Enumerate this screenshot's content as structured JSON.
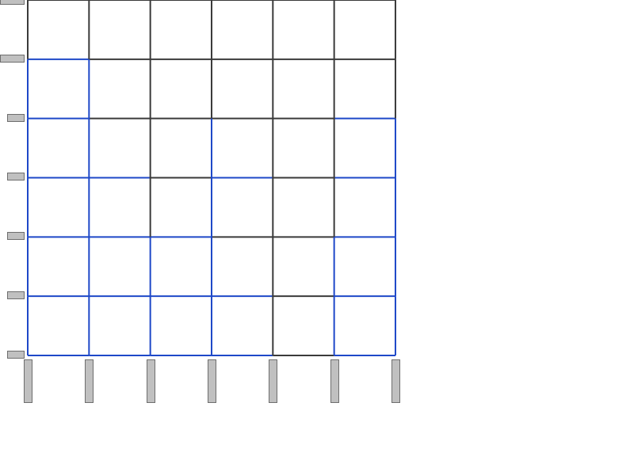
{
  "board": {
    "columns": 6,
    "rows": 6,
    "line_color": "#3a3a3a",
    "claimed_color": "#1e48c8",
    "handle_color": "#c0c0c0",
    "handle_border_color": "#6e6e6e",
    "claimed_horizontal_edges": [
      {
        "row": 1,
        "col": 0
      },
      {
        "row": 2,
        "col": 0
      },
      {
        "row": 2,
        "col": 5
      },
      {
        "row": 3,
        "col": 0
      },
      {
        "row": 3,
        "col": 1
      },
      {
        "row": 3,
        "col": 3
      },
      {
        "row": 3,
        "col": 5
      },
      {
        "row": 4,
        "col": 0
      },
      {
        "row": 4,
        "col": 1
      },
      {
        "row": 4,
        "col": 2
      },
      {
        "row": 4,
        "col": 5
      },
      {
        "row": 5,
        "col": 0
      },
      {
        "row": 5,
        "col": 1
      },
      {
        "row": 5,
        "col": 2
      },
      {
        "row": 5,
        "col": 3
      },
      {
        "row": 5,
        "col": 5
      },
      {
        "row": 6,
        "col": 0
      },
      {
        "row": 6,
        "col": 1
      },
      {
        "row": 6,
        "col": 2
      },
      {
        "row": 6,
        "col": 3
      },
      {
        "row": 6,
        "col": 5
      }
    ],
    "claimed_vertical_edges": [
      {
        "row": 1,
        "col": 0
      },
      {
        "row": 2,
        "col": 0
      },
      {
        "row": 3,
        "col": 0
      },
      {
        "row": 4,
        "col": 0
      },
      {
        "row": 5,
        "col": 0
      },
      {
        "row": 1,
        "col": 1
      },
      {
        "row": 2,
        "col": 1
      },
      {
        "row": 3,
        "col": 1
      },
      {
        "row": 4,
        "col": 1
      },
      {
        "row": 5,
        "col": 1
      },
      {
        "row": 4,
        "col": 2
      },
      {
        "row": 5,
        "col": 2
      },
      {
        "row": 2,
        "col": 3
      },
      {
        "row": 3,
        "col": 3
      },
      {
        "row": 4,
        "col": 3
      },
      {
        "row": 5,
        "col": 3
      },
      {
        "row": 4,
        "col": 5
      },
      {
        "row": 5,
        "col": 5
      },
      {
        "row": 2,
        "col": 6
      },
      {
        "row": 3,
        "col": 6
      },
      {
        "row": 4,
        "col": 6
      },
      {
        "row": 5,
        "col": 6
      }
    ]
  }
}
